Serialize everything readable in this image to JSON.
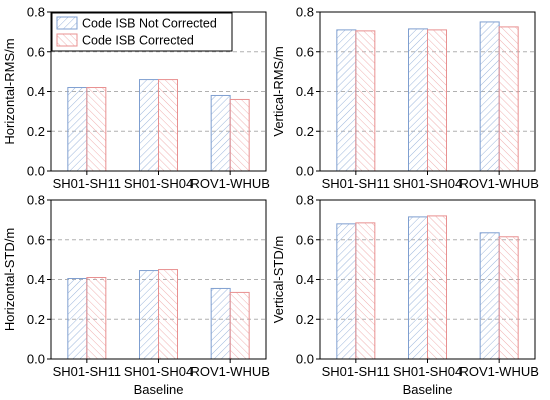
{
  "legend": {
    "items": [
      {
        "label": "Code ISB Not Corrected",
        "color": "#7f9fd0"
      },
      {
        "label": "Code ISB Corrected",
        "color": "#e89090"
      }
    ]
  },
  "chart_data": [
    {
      "type": "bar",
      "categories": [
        "SH01-SH11",
        "SH01-SH04",
        "ROV1-WHUB"
      ],
      "series": [
        {
          "name": "Code ISB Not Corrected",
          "values": [
            0.42,
            0.46,
            0.38
          ]
        },
        {
          "name": "Code ISB Corrected",
          "values": [
            0.42,
            0.46,
            0.36
          ]
        }
      ],
      "xlabel": "",
      "ylabel": "Horizontal-RMS/m",
      "ylim": [
        0,
        0.8
      ],
      "yticks": [
        "0.0",
        "0.2",
        "0.4",
        "0.6",
        "0.8"
      ],
      "grid": "horizontal dashed",
      "legend": "top-left"
    },
    {
      "type": "bar",
      "categories": [
        "SH01-SH11",
        "SH01-SH04",
        "ROV1-WHUB"
      ],
      "series": [
        {
          "name": "Code ISB Not Corrected",
          "values": [
            0.71,
            0.715,
            0.75
          ]
        },
        {
          "name": "Code ISB Corrected",
          "values": [
            0.705,
            0.71,
            0.725
          ]
        }
      ],
      "xlabel": "",
      "ylabel": "Vertical-RMS/m",
      "ylim": [
        0,
        0.8
      ],
      "yticks": [
        "0.0",
        "0.2",
        "0.4",
        "0.6",
        "0.8"
      ],
      "grid": "horizontal dashed"
    },
    {
      "type": "bar",
      "categories": [
        "SH01-SH11",
        "SH01-SH04",
        "ROV1-WHUB"
      ],
      "series": [
        {
          "name": "Code ISB Not Corrected",
          "values": [
            0.405,
            0.445,
            0.355
          ]
        },
        {
          "name": "Code ISB Corrected",
          "values": [
            0.41,
            0.45,
            0.335
          ]
        }
      ],
      "xlabel": "Baseline",
      "ylabel": "Horizontal-STD/m",
      "ylim": [
        0,
        0.8
      ],
      "yticks": [
        "0.0",
        "0.2",
        "0.4",
        "0.6",
        "0.8"
      ],
      "grid": "horizontal dashed"
    },
    {
      "type": "bar",
      "categories": [
        "SH01-SH11",
        "SH01-SH04",
        "ROV1-WHUB"
      ],
      "series": [
        {
          "name": "Code ISB Not Corrected",
          "values": [
            0.68,
            0.715,
            0.635
          ]
        },
        {
          "name": "Code ISB Corrected",
          "values": [
            0.685,
            0.72,
            0.615
          ]
        }
      ],
      "xlabel": "Baseline",
      "ylabel": "Vertical-STD/m",
      "ylim": [
        0,
        0.8
      ],
      "yticks": [
        "0.0",
        "0.2",
        "0.4",
        "0.6",
        "0.8"
      ],
      "grid": "horizontal dashed"
    }
  ]
}
